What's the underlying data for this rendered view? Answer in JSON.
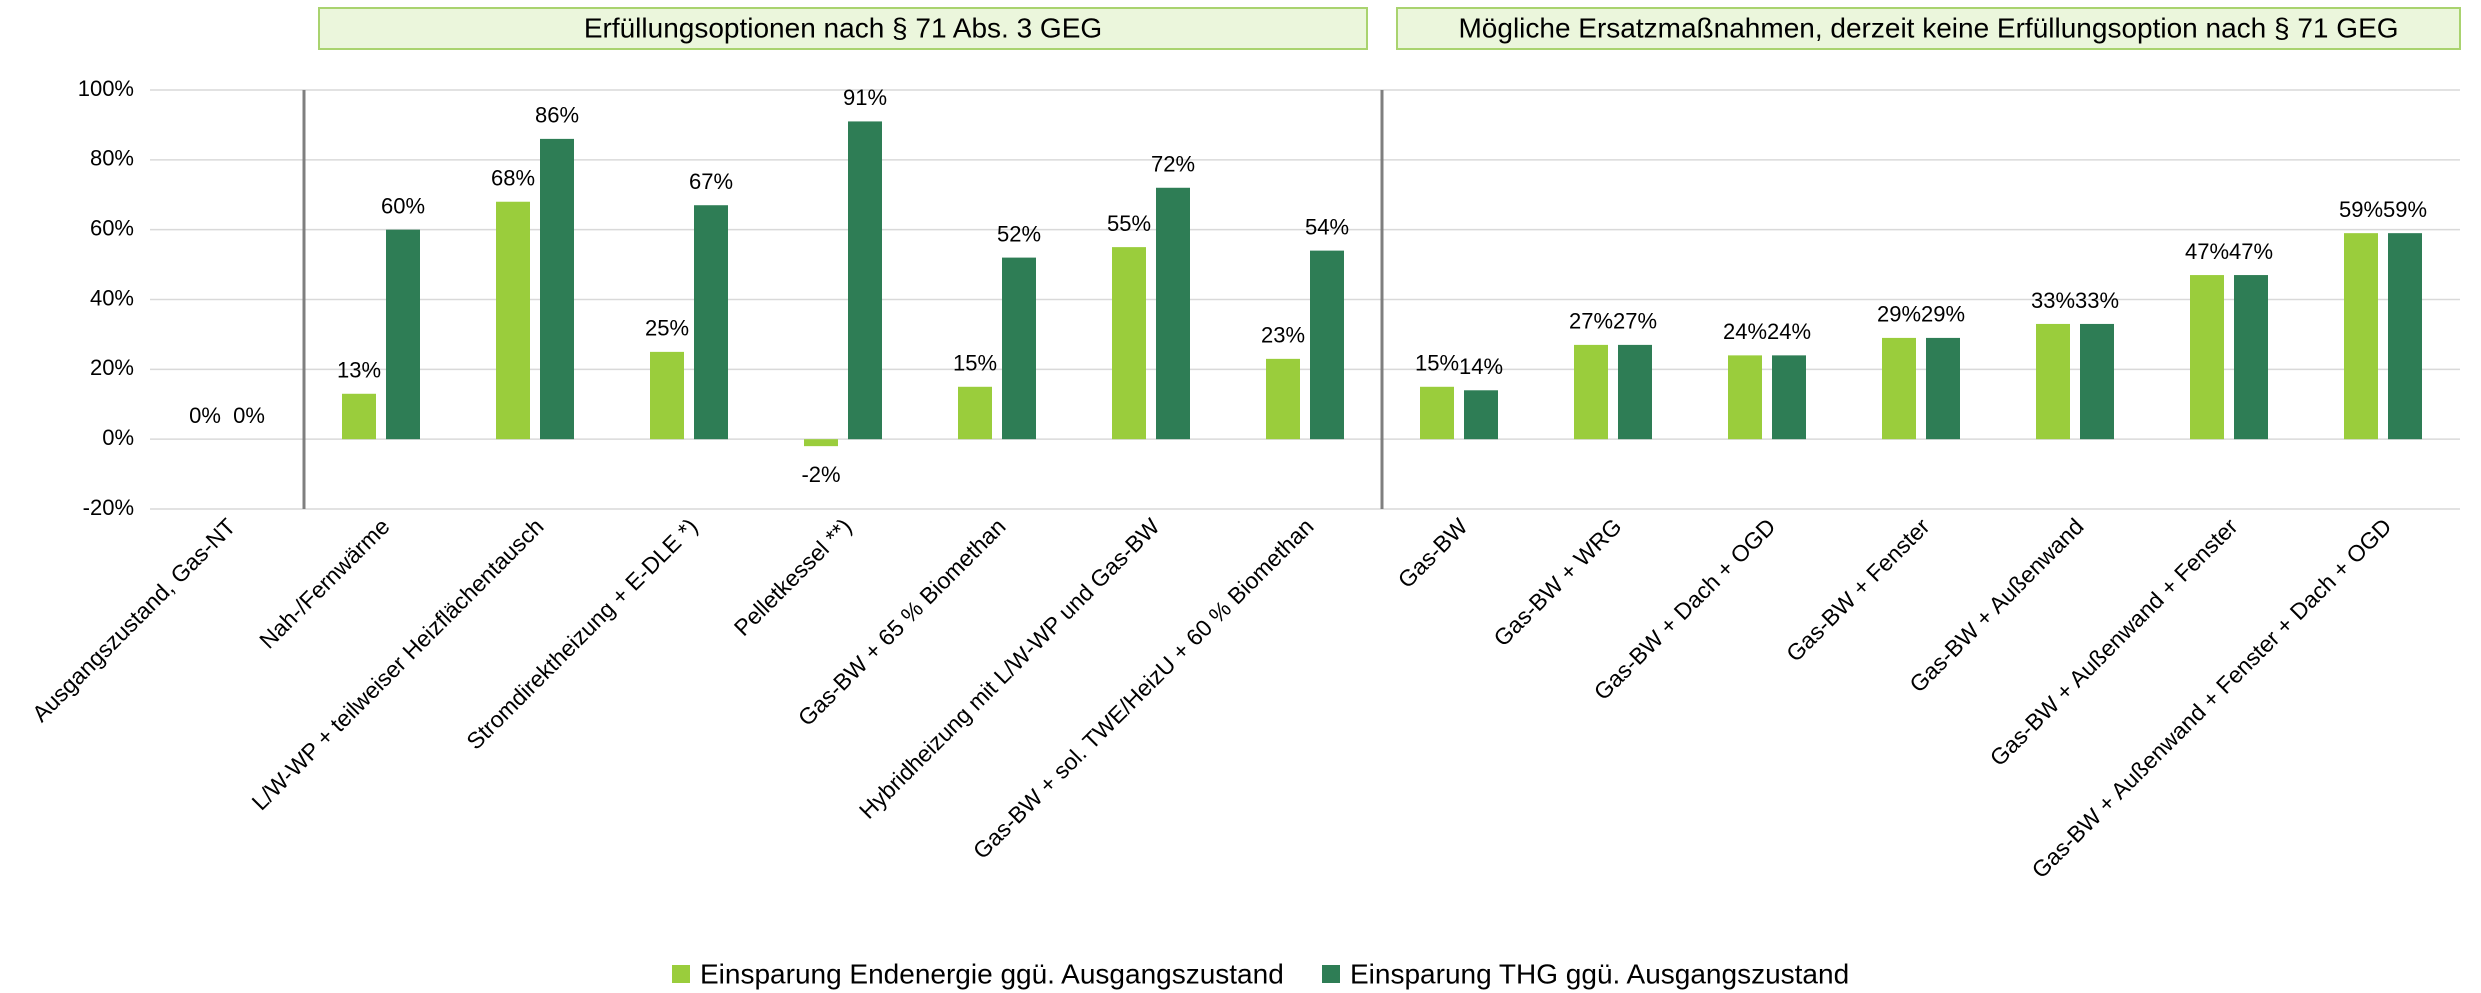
{
  "chart_data": {
    "type": "bar",
    "annotations": [
      "Erfüllungsoptionen nach § 71 Abs. 3 GEG",
      "Mögliche Ersatzmaßnahmen, derzeit keine Erfüllungsoption nach § 71 GEG"
    ],
    "categories": [
      "Ausgangszustand, Gas-NT",
      "Nah-/Fernwärme",
      "L/W-WP + teilweiser Heizflächentausch",
      "Stromdirektheizung + E-DLE *)",
      "Pelletkessel **)",
      "Gas-BW + 65 % Biomethan",
      "Hybridheizung mit L/W-WP und Gas-BW",
      "Gas-BW + sol. TWE/HeizU + 60 % Biomethan",
      "Gas-BW",
      "Gas-BW + WRG",
      "Gas-BW + Dach + OGD",
      "Gas-BW + Fenster",
      "Gas-BW + Außenwand",
      "Gas-BW + Außenwand + Fenster",
      "Gas-BW + Außenwand + Fenster + Dach + OGD"
    ],
    "series": [
      {
        "name": "Einsparung Endenergie ggü. Ausgangszustand",
        "color": "#9acd3c",
        "values": [
          0,
          13,
          68,
          25,
          -2,
          15,
          55,
          23,
          15,
          27,
          24,
          29,
          33,
          47,
          59
        ],
        "value_labels": [
          "0%",
          "13%",
          "68%",
          "25%",
          "-2%",
          "15%",
          "55%",
          "23%",
          "15%",
          "27%",
          "24%",
          "29%",
          "33%",
          "47%",
          "59%"
        ]
      },
      {
        "name": "Einsparung THG ggü. Ausgangszustand",
        "color": "#2e7d55",
        "values": [
          0,
          60,
          86,
          67,
          91,
          52,
          72,
          54,
          14,
          27,
          24,
          29,
          33,
          47,
          59
        ],
        "value_labels": [
          "0%",
          "60%",
          "86%",
          "67%",
          "91%",
          "52%",
          "72%",
          "54%",
          "14%",
          "27%",
          "24%",
          "29%",
          "33%",
          "47%",
          "59%"
        ]
      }
    ],
    "ylim": [
      -20,
      100
    ],
    "yticks": [
      {
        "value": -20,
        "label": "-20%"
      },
      {
        "value": 0,
        "label": "0%"
      },
      {
        "value": 20,
        "label": "20%"
      },
      {
        "value": 40,
        "label": "40%"
      },
      {
        "value": 60,
        "label": "60%"
      },
      {
        "value": 80,
        "label": "80%"
      },
      {
        "value": 100,
        "label": "100%"
      }
    ],
    "grid": true
  }
}
